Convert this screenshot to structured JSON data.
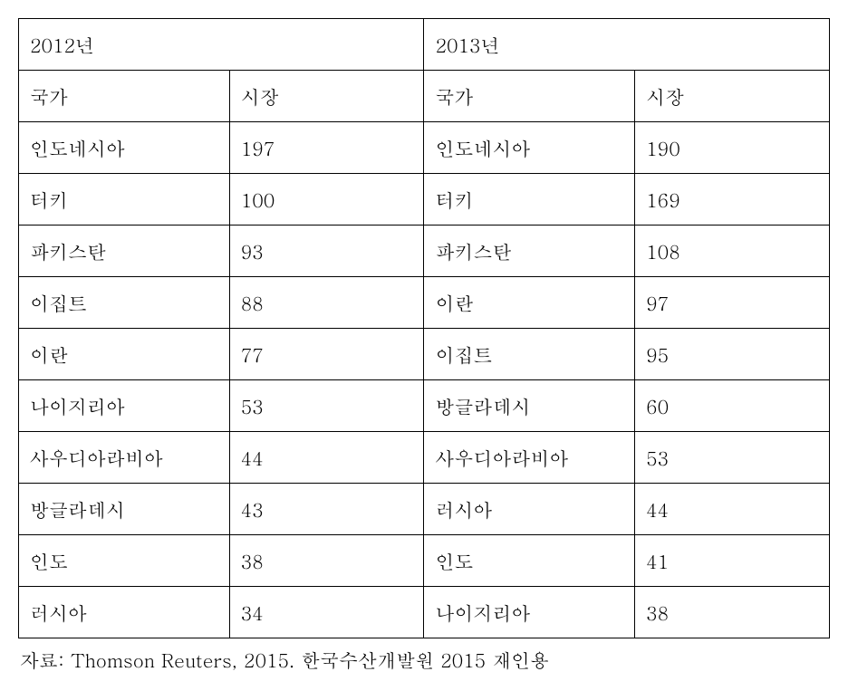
{
  "table": {
    "type": "table",
    "border_color": "#000000",
    "background_color": "#ffffff",
    "text_color": "#000000",
    "font_size": 21,
    "font_family": "Batang",
    "header_years": {
      "year_left": "2012년",
      "year_right": "2013년"
    },
    "column_headers": {
      "country_left": "국가",
      "market_left": "시장",
      "country_right": "국가",
      "market_right": "시장"
    },
    "rows": [
      {
        "country_left": "인도네시아",
        "market_left": "197",
        "country_right": "인도네시아",
        "market_right": "190"
      },
      {
        "country_left": "터키",
        "market_left": "100",
        "country_right": "터키",
        "market_right": "169"
      },
      {
        "country_left": "파키스탄",
        "market_left": "93",
        "country_right": "파키스탄",
        "market_right": "108"
      },
      {
        "country_left": "이집트",
        "market_left": "88",
        "country_right": "이란",
        "market_right": "97"
      },
      {
        "country_left": "이란",
        "market_left": "77",
        "country_right": "이집트",
        "market_right": "95"
      },
      {
        "country_left": "나이지리아",
        "market_left": "53",
        "country_right": "방글라데시",
        "market_right": "60"
      },
      {
        "country_left": "사우디아라비아",
        "market_left": "44",
        "country_right": "사우디아라비아",
        "market_right": "53"
      },
      {
        "country_left": "방글라데시",
        "market_left": "43",
        "country_right": "러시아",
        "market_right": "44"
      },
      {
        "country_left": "인도",
        "market_left": "38",
        "country_right": "인도",
        "market_right": "41"
      },
      {
        "country_left": "러시아",
        "market_left": "34",
        "country_right": "나이지리아",
        "market_right": "38"
      }
    ],
    "column_widths": {
      "country_left": "26%",
      "market_left": "24%",
      "country_right": "26%",
      "market_right": "24%"
    }
  },
  "footnote": {
    "text": "자료: Thomson Reuters, 2015. 한국수산개발원 2015 재인용",
    "font_size": 21,
    "text_color": "#000000"
  }
}
